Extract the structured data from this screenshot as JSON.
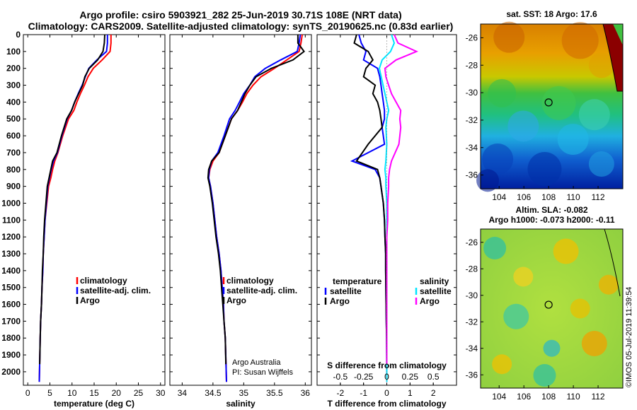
{
  "header": {
    "line1": "Argo profile: csiro 5903921_282 25-Jun-2019 30.71S 108E (NRT data)",
    "line2": "Climatology: CARS2009. Satellite-adjusted climatology: synTS_20190625.nc (0.83d earlier)"
  },
  "depth_ticks": [
    0,
    100,
    200,
    300,
    400,
    500,
    600,
    700,
    800,
    900,
    1000,
    1100,
    1200,
    1300,
    1400,
    1500,
    1600,
    1700,
    1800,
    1900,
    2000
  ],
  "colors": {
    "climatology": "#ff0000",
    "satellite": "#0000ff",
    "argo": "#000000",
    "sal_satellite": "#00e5ff",
    "sal_argo": "#ff00ff"
  },
  "chart_data": [
    {
      "type": "line",
      "id": "temperature",
      "xlabel": "temperature (deg C)",
      "xlim": [
        -1,
        31
      ],
      "xticks": [
        0,
        5,
        10,
        15,
        20,
        25,
        30
      ],
      "ylim": [
        0,
        2080
      ],
      "y_inverted": true,
      "legend": [
        "climatology",
        "satellite-adj. clim.",
        "Argo"
      ],
      "series": [
        {
          "name": "climatology",
          "color": "#ff0000",
          "x": [
            18.8,
            18.8,
            18.6,
            16.8,
            14.8,
            13.6,
            12.8,
            11.9,
            11.1,
            10.4,
            9.2,
            7.9,
            6.8,
            6.1,
            5.6,
            5.2,
            4.7,
            4.3,
            3.9,
            3.7,
            3.5,
            3.4,
            3.2,
            3.1,
            2.9,
            2.8,
            2.6
          ],
          "y": [
            0,
            50,
            100,
            150,
            200,
            250,
            300,
            350,
            400,
            450,
            500,
            600,
            700,
            750,
            800,
            850,
            900,
            1000,
            1100,
            1200,
            1300,
            1400,
            1500,
            1600,
            1700,
            1800,
            2060
          ]
        },
        {
          "name": "satellite-adj. clim.",
          "color": "#0000ff",
          "x": [
            18.0,
            18.0,
            17.8,
            15.6,
            13.8,
            13.0,
            12.3,
            11.4,
            10.6,
            9.9,
            8.9,
            7.7,
            6.7,
            5.8,
            5.3,
            4.9,
            4.5,
            4.2,
            3.9,
            3.7,
            3.5,
            3.4,
            3.2,
            3.1,
            2.9,
            2.8,
            2.6
          ],
          "y": [
            0,
            50,
            100,
            150,
            200,
            250,
            300,
            350,
            400,
            450,
            500,
            600,
            700,
            750,
            800,
            850,
            900,
            1000,
            1100,
            1200,
            1300,
            1400,
            1500,
            1600,
            1700,
            1800,
            2060
          ]
        },
        {
          "name": "Argo",
          "color": "#000000",
          "x": [
            17.4,
            17.3,
            17.0,
            15.8,
            13.9,
            12.9,
            12.4,
            11.5,
            10.6,
            9.9,
            8.8,
            7.6,
            6.6,
            5.6,
            5.2,
            4.8,
            4.4,
            4.1,
            3.8,
            3.6,
            3.5,
            3.3,
            3.2,
            3.1,
            2.9,
            2.8,
            2.7
          ],
          "y": [
            0,
            50,
            100,
            150,
            200,
            250,
            300,
            350,
            400,
            450,
            500,
            600,
            700,
            750,
            800,
            850,
            900,
            1000,
            1100,
            1200,
            1300,
            1400,
            1500,
            1600,
            1700,
            1800,
            1955
          ]
        }
      ]
    },
    {
      "type": "line",
      "id": "salinity",
      "xlabel": "salinity",
      "xlim": [
        33.8,
        36.1
      ],
      "xticks": [
        34,
        34.5,
        35,
        35.5,
        36
      ],
      "ylim": [
        0,
        2080
      ],
      "y_inverted": true,
      "legend": [
        "climatology",
        "satellite-adj. clim.",
        "Argo"
      ],
      "annotation": [
        "Argo Australia",
        "PI: Susan Wijffels"
      ],
      "series": [
        {
          "name": "climatology",
          "color": "#ff0000",
          "x": [
            35.95,
            35.93,
            35.9,
            35.7,
            35.5,
            35.28,
            35.15,
            35.05,
            34.98,
            34.9,
            34.8,
            34.7,
            34.6,
            34.5,
            34.45,
            34.43,
            34.46,
            34.5,
            34.53,
            34.56,
            34.6,
            34.63,
            34.65,
            34.67,
            34.68,
            34.7,
            34.72
          ],
          "y": [
            0,
            50,
            100,
            150,
            200,
            250,
            300,
            350,
            400,
            450,
            500,
            600,
            700,
            750,
            800,
            850,
            900,
            1000,
            1100,
            1200,
            1300,
            1400,
            1500,
            1600,
            1700,
            1800,
            2060
          ]
        },
        {
          "name": "satellite-adj. clim.",
          "color": "#0000ff",
          "x": [
            35.92,
            35.9,
            35.87,
            35.6,
            35.35,
            35.18,
            35.1,
            35.0,
            34.93,
            34.86,
            34.77,
            34.68,
            34.58,
            34.48,
            34.44,
            34.43,
            34.46,
            34.5,
            34.53,
            34.56,
            34.6,
            34.63,
            34.65,
            34.67,
            34.68,
            34.7,
            34.72
          ],
          "y": [
            0,
            50,
            100,
            150,
            200,
            250,
            300,
            350,
            400,
            450,
            500,
            600,
            700,
            750,
            800,
            850,
            900,
            1000,
            1100,
            1200,
            1300,
            1400,
            1500,
            1600,
            1700,
            1800,
            2060
          ]
        },
        {
          "name": "Argo",
          "color": "#000000",
          "x": [
            35.88,
            35.88,
            35.98,
            35.8,
            35.45,
            35.2,
            35.1,
            35.02,
            34.96,
            34.9,
            34.8,
            34.7,
            34.6,
            34.48,
            34.43,
            34.42,
            34.45,
            34.49,
            34.52,
            34.55,
            34.59,
            34.62,
            34.64,
            34.66,
            34.68,
            34.7,
            34.71
          ],
          "y": [
            0,
            50,
            100,
            150,
            200,
            250,
            300,
            350,
            400,
            450,
            500,
            600,
            700,
            750,
            800,
            850,
            900,
            1000,
            1100,
            1200,
            1300,
            1400,
            1500,
            1600,
            1700,
            1800,
            1955
          ]
        }
      ]
    },
    {
      "type": "line",
      "id": "difference",
      "xlabel": "T difference from climatology",
      "xlabel2": "S difference from climatology",
      "xlim": [
        -3.0,
        3.0
      ],
      "xticks": [
        -2,
        -1,
        0,
        1,
        2
      ],
      "xlim2": [
        -0.75,
        0.75
      ],
      "xticks2_labels": [
        "-0.5",
        "-0.25",
        "0",
        "0.25",
        "0.5"
      ],
      "xticks2_values": [
        -0.5,
        -0.25,
        0,
        0.25,
        0.5
      ],
      "ylim": [
        0,
        2080
      ],
      "y_inverted": true,
      "legend_left_title": "temperature",
      "legend_right_title": "salinity",
      "legend_left": [
        "satellite",
        "Argo"
      ],
      "legend_right": [
        "satellite",
        "Argo"
      ],
      "series": [
        {
          "name": "temperature satellite",
          "color": "#0000ff",
          "x": [
            -1.2,
            -1.1,
            -0.9,
            -1.0,
            -0.4,
            -0.3,
            -0.25,
            -0.2,
            -0.15,
            -0.1,
            -0.1,
            -0.2,
            -0.1,
            -1.5,
            -0.5,
            -0.3,
            -0.25,
            -0.15,
            -0.1,
            -0.08,
            -0.05,
            -0.05,
            -0.04,
            -0.03,
            -0.02,
            -0.01,
            0.0
          ],
          "y": [
            0,
            50,
            100,
            150,
            200,
            250,
            300,
            350,
            400,
            450,
            500,
            550,
            650,
            750,
            800,
            850,
            900,
            1000,
            1100,
            1200,
            1300,
            1400,
            1500,
            1600,
            1700,
            1800,
            2060
          ]
        },
        {
          "name": "temperature Argo",
          "color": "#000000",
          "x": [
            -1.3,
            -1.4,
            -0.8,
            -0.6,
            -0.9,
            -1.0,
            -0.5,
            -0.6,
            -0.4,
            -0.3,
            -0.25,
            -0.2,
            -0.8,
            -1.3,
            -0.4,
            -0.3,
            -0.25,
            -0.15,
            -0.1,
            -0.08,
            -0.05,
            -0.05,
            -0.04,
            -0.03,
            -0.02,
            -0.01,
            0.0
          ],
          "y": [
            0,
            50,
            100,
            150,
            200,
            250,
            300,
            350,
            400,
            450,
            500,
            550,
            650,
            750,
            800,
            850,
            900,
            1000,
            1100,
            1200,
            1300,
            1400,
            1500,
            1600,
            1700,
            1800,
            1955
          ]
        },
        {
          "name": "salinity satellite",
          "color": "#00e5ff",
          "x": [
            0.05,
            0.08,
            0.04,
            -0.05,
            -0.08,
            -0.06,
            -0.04,
            -0.02,
            0.0,
            0.02,
            0.0,
            -0.01,
            0.0,
            -0.01,
            -0.02,
            -0.01,
            -0.01,
            0.0,
            0.0,
            0.0,
            0.0,
            0.0,
            0.0,
            0.0,
            0.0,
            0.0,
            0.0
          ],
          "y": [
            0,
            50,
            100,
            150,
            200,
            250,
            300,
            350,
            400,
            450,
            500,
            550,
            650,
            750,
            800,
            850,
            900,
            1000,
            1100,
            1200,
            1300,
            1400,
            1500,
            1600,
            1700,
            1800,
            2060
          ]
        },
        {
          "name": "salinity Argo",
          "color": "#ff00ff",
          "x": [
            0.08,
            0.12,
            0.32,
            0.1,
            -0.02,
            -0.01,
            0.02,
            0.05,
            0.1,
            0.15,
            0.14,
            0.15,
            0.13,
            0.05,
            0.03,
            0.02,
            0.02,
            0.01,
            0.01,
            0.0,
            0.0,
            0.0,
            0.0,
            0.0,
            0.0,
            0.0,
            0.0
          ],
          "y": [
            0,
            50,
            100,
            150,
            200,
            250,
            300,
            350,
            400,
            450,
            500,
            550,
            650,
            750,
            800,
            850,
            900,
            1000,
            1100,
            1200,
            1300,
            1400,
            1500,
            1600,
            1700,
            1800,
            1955
          ]
        }
      ]
    },
    {
      "type": "heatmap",
      "id": "sst_map",
      "title": "sat. SST: 18 Argo: 17.6",
      "xticks": [
        104,
        106,
        108,
        110,
        112
      ],
      "yticks": [
        -26,
        -28,
        -30,
        -32,
        -34,
        -36
      ],
      "xlim": [
        102.5,
        114
      ],
      "ylim": [
        -37,
        -25
      ],
      "marker": {
        "lon": 108,
        "lat": -30.71
      }
    },
    {
      "type": "heatmap",
      "id": "sla_map",
      "title": "Altim. SLA: -0.082",
      "subtitle": "Argo h1000: -0.073 h2000: -0.11",
      "xticks": [
        104,
        106,
        108,
        110,
        112
      ],
      "yticks": [
        -26,
        -28,
        -30,
        -32,
        -34,
        -36
      ],
      "xlim": [
        102.5,
        114
      ],
      "ylim": [
        -37,
        -25
      ],
      "marker": {
        "lon": 108,
        "lat": -30.71
      }
    }
  ],
  "watermark": "©IMOS 05-Jul-2019 11:39:54"
}
